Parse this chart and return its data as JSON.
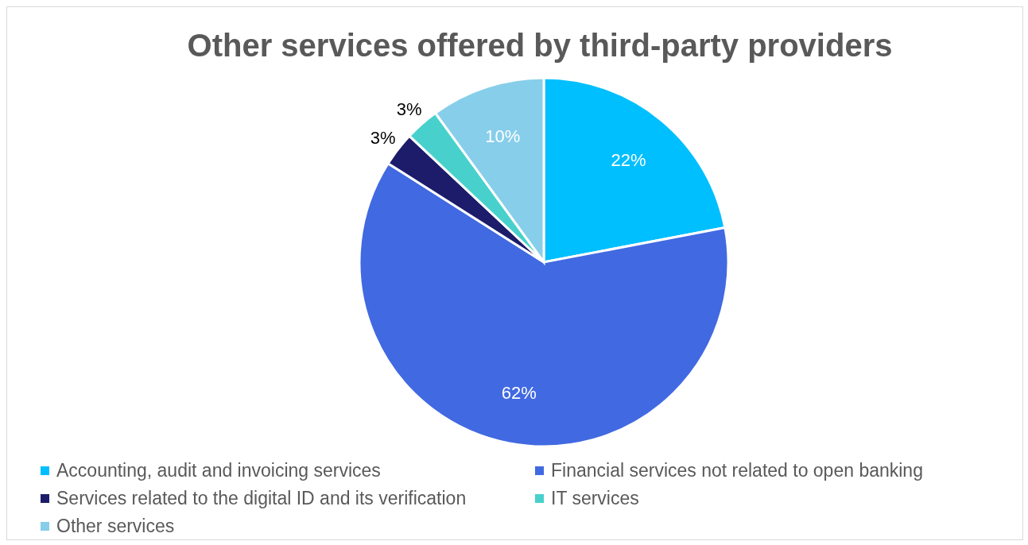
{
  "chart_data": {
    "type": "pie",
    "title": "Other services offered by third-party providers",
    "categories": [
      "Accounting, audit and invoicing services",
      "Financial services not related to open banking",
      "Services related to the digital ID and its verification",
      "IT services",
      "Other services"
    ],
    "values": [
      22,
      62,
      3,
      3,
      10
    ],
    "value_labels": [
      "22%",
      "62%",
      "3%",
      "3%",
      "10%"
    ],
    "colors": [
      "#00bfff",
      "#4169e1",
      "#1c1c6b",
      "#48d1cc",
      "#87ceeb"
    ],
    "legend": "bottom"
  }
}
